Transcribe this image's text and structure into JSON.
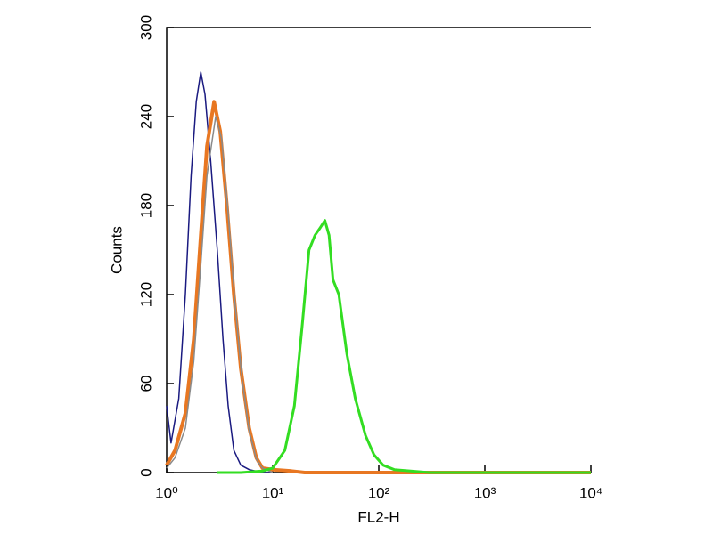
{
  "chart_data": {
    "type": "line",
    "log_x": true,
    "x_label": "FL2-H",
    "y_label": "Counts",
    "xlim": [
      1,
      10000
    ],
    "xticks": [
      {
        "value": 1,
        "label": "10⁰"
      },
      {
        "value": 10,
        "label": "10¹"
      },
      {
        "value": 100,
        "label": "10²"
      },
      {
        "value": 1000,
        "label": "10³"
      },
      {
        "value": 10000,
        "label": "10⁴"
      }
    ],
    "ylim": [
      0,
      300
    ],
    "yticks": [
      0,
      60,
      120,
      180,
      240,
      300
    ],
    "series": [
      {
        "color": "#1a1a80",
        "width": 1.5,
        "x": [
          1,
          1.1,
          1.3,
          1.5,
          1.7,
          1.9,
          2.1,
          2.3,
          2.6,
          3,
          3.4,
          3.8,
          4.3,
          5,
          6,
          8,
          10
        ],
        "values": [
          45,
          20,
          50,
          120,
          200,
          250,
          270,
          255,
          210,
          150,
          90,
          45,
          15,
          5,
          2,
          0,
          0
        ]
      },
      {
        "color": "#e87722",
        "width": 4,
        "x": [
          1,
          1.2,
          1.5,
          1.8,
          2.1,
          2.4,
          2.8,
          3.2,
          3.7,
          4.3,
          5,
          6,
          7,
          8,
          10,
          15,
          20,
          50,
          100,
          1000,
          10000
        ],
        "values": [
          5,
          15,
          40,
          90,
          160,
          220,
          250,
          230,
          180,
          120,
          70,
          30,
          10,
          3,
          2,
          1,
          0,
          0,
          0,
          0,
          0
        ]
      },
      {
        "color": "#8a8a8a",
        "width": 1.5,
        "x": [
          1,
          1.2,
          1.5,
          1.8,
          2.1,
          2.4,
          2.9,
          3.3,
          3.8,
          4.4,
          5.1,
          6,
          7,
          8,
          10
        ],
        "values": [
          3,
          10,
          30,
          75,
          140,
          200,
          240,
          225,
          175,
          115,
          65,
          28,
          9,
          3,
          0
        ]
      },
      {
        "color": "#33dd22",
        "width": 3,
        "x": [
          3,
          5,
          8,
          10,
          13,
          16,
          19,
          22,
          25,
          28,
          31,
          34,
          37,
          42,
          50,
          60,
          75,
          90,
          110,
          140,
          200,
          300,
          1000,
          10000
        ],
        "values": [
          0,
          0,
          1,
          3,
          15,
          45,
          100,
          150,
          160,
          165,
          170,
          160,
          130,
          120,
          80,
          50,
          25,
          12,
          5,
          2,
          1,
          0,
          0,
          0
        ]
      }
    ]
  }
}
